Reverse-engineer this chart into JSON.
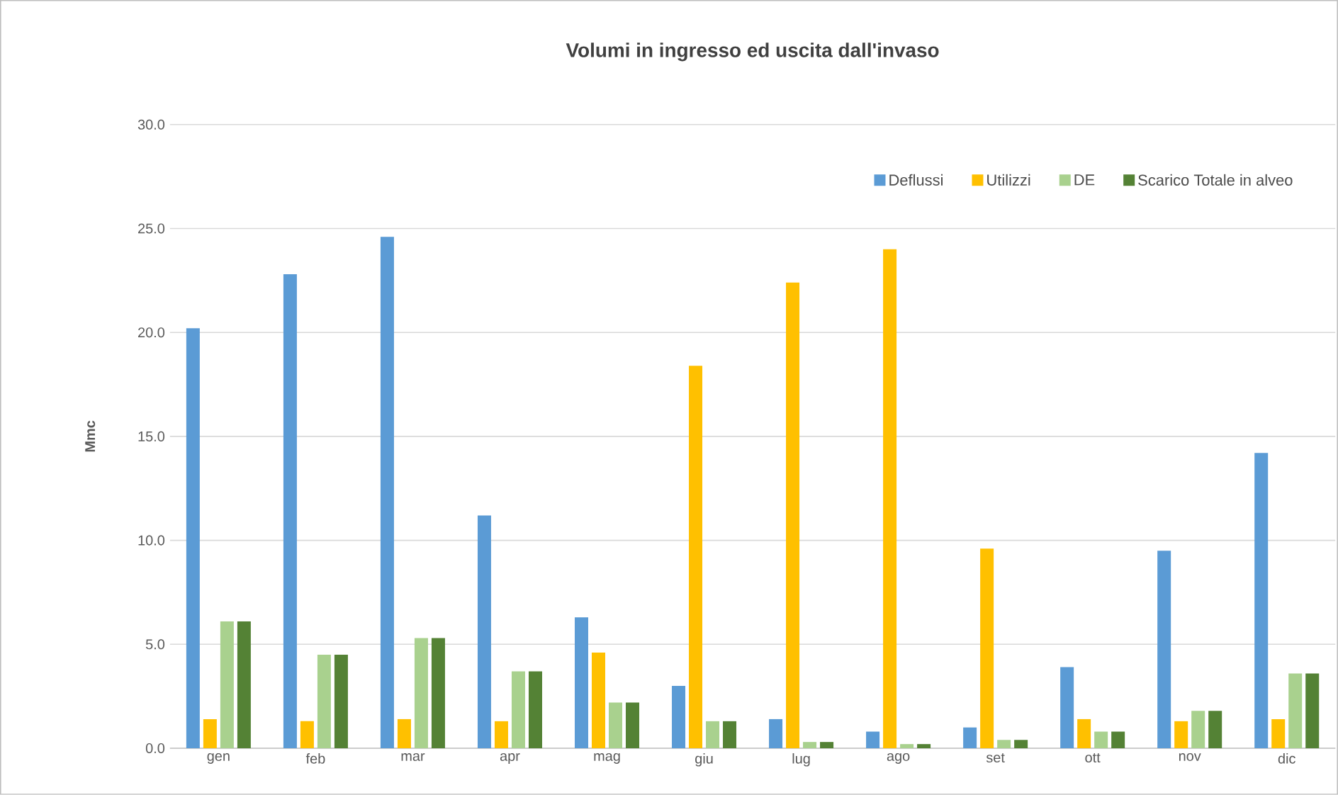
{
  "chart_data": {
    "type": "bar",
    "title": "Volumi in ingresso ed uscita dall'invaso",
    "ylabel": "Mmc",
    "categories": [
      "gen",
      "feb",
      "mar",
      "apr",
      "mag",
      "giu",
      "lug",
      "ago",
      "set",
      "ott",
      "nov",
      "dic"
    ],
    "series": [
      {
        "name": "Deflussi",
        "color": "#5b9bd5",
        "values": [
          20.2,
          22.8,
          24.6,
          11.2,
          6.3,
          3.0,
          1.4,
          0.8,
          1.0,
          3.9,
          9.5,
          14.2
        ]
      },
      {
        "name": "Utilizzi",
        "color": "#ffc000",
        "values": [
          1.4,
          1.3,
          1.4,
          1.3,
          4.6,
          18.4,
          22.4,
          24.0,
          9.6,
          1.4,
          1.3,
          1.4
        ]
      },
      {
        "name": "DE",
        "color": "#a9d18e",
        "values": [
          6.1,
          4.5,
          5.3,
          3.7,
          2.2,
          1.3,
          0.3,
          0.2,
          0.4,
          0.8,
          1.8,
          3.6
        ]
      },
      {
        "name": "Scarico Totale in alveo",
        "color": "#548235",
        "values": [
          6.1,
          4.5,
          5.3,
          3.7,
          2.2,
          1.3,
          0.3,
          0.2,
          0.4,
          0.8,
          1.8,
          3.6
        ]
      }
    ],
    "ylim": [
      0,
      30
    ],
    "yticks": [
      {
        "value": 0,
        "label": "0.0"
      },
      {
        "value": 5,
        "label": "5.0"
      },
      {
        "value": 10,
        "label": "10.0"
      },
      {
        "value": 15,
        "label": "15.0"
      },
      {
        "value": 20,
        "label": "20.0"
      },
      {
        "value": 25,
        "label": "25.0"
      },
      {
        "value": 30,
        "label": "30.0"
      }
    ],
    "grid": "y",
    "legend": "top right"
  }
}
